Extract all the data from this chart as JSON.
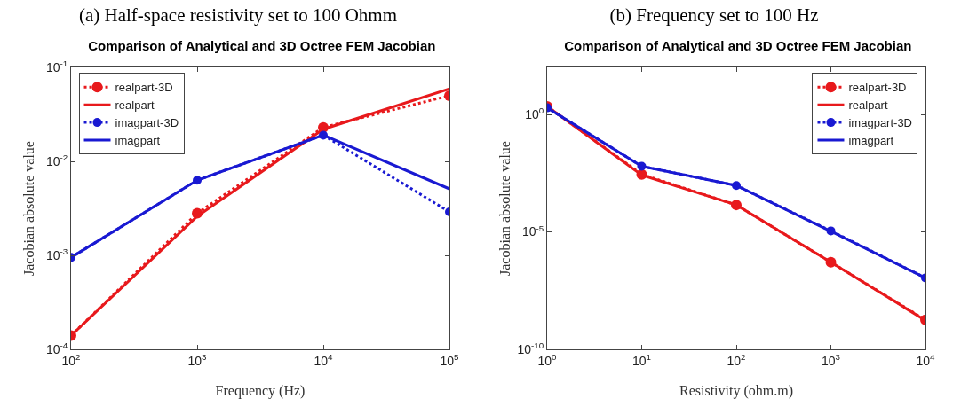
{
  "chart_data": [
    {
      "type": "line",
      "title": "(a)  Half-space resistivity set to 100 Ohmm",
      "subtitle": "Comparison of Analytical and 3D Octree FEM Jacobian",
      "xlabel": "Frequency (Hz)",
      "ylabel": "Jacobian absolute value",
      "log": "xy",
      "grid": false,
      "legend": "top left",
      "x": [
        100,
        1000,
        10000,
        100000
      ],
      "xlim": [
        100,
        100000
      ],
      "xticks": [
        {
          "value": 100,
          "label": "10$^{2}$"
        },
        {
          "value": 1000,
          "label": "10$^{3}$"
        },
        {
          "value": 10000,
          "label": "10$^{4}$"
        },
        {
          "value": 100000,
          "label": "10$^{5}$"
        }
      ],
      "ylim": [
        0.0001,
        0.1
      ],
      "yticks": [
        {
          "value": 0.0001,
          "label": "10$^{-4}$"
        },
        {
          "value": 0.001,
          "label": "10$^{-3}$"
        },
        {
          "value": 0.01,
          "label": "10$^{-2}$"
        },
        {
          "value": 0.1,
          "label": "10$^{-1}$"
        }
      ],
      "series": [
        {
          "name": "realpart-3D",
          "color": "#e8191c",
          "line_style": "dotted",
          "marker": "circle",
          "values": [
            0.00014,
            0.0028,
            0.023,
            0.05
          ]
        },
        {
          "name": "realpart",
          "color": "#e8191c",
          "line_style": "solid",
          "marker": "none",
          "values": [
            0.00014,
            0.0026,
            0.022,
            0.059
          ]
        },
        {
          "name": "imagpart-3D",
          "color": "#1919d2",
          "line_style": "dotted",
          "marker": "circle",
          "values": [
            0.00095,
            0.0063,
            0.019,
            0.0029
          ]
        },
        {
          "name": "imagpart",
          "color": "#1919d2",
          "line_style": "solid",
          "marker": "none",
          "values": [
            0.00095,
            0.0063,
            0.019,
            0.0051
          ]
        }
      ]
    },
    {
      "type": "line",
      "title": "(b) Frequency set to 100 Hz",
      "subtitle": "Comparison of Analytical and 3D Octree FEM Jacobian",
      "xlabel": "Resistivity (ohm.m)",
      "ylabel": "Jacobian absolute value",
      "log": "xy",
      "grid": false,
      "legend": "top right",
      "x": [
        1,
        10,
        100,
        1000,
        10000
      ],
      "xlim": [
        1,
        10000
      ],
      "xticks": [
        {
          "value": 1,
          "label": "10$^{0}$"
        },
        {
          "value": 10,
          "label": "10$^{1}$"
        },
        {
          "value": 100,
          "label": "10$^{2}$"
        },
        {
          "value": 1000,
          "label": "10$^{3}$"
        },
        {
          "value": 10000,
          "label": "10$^{4}$"
        }
      ],
      "ylim": [
        1e-10,
        100
      ],
      "yticks": [
        {
          "value": 1e-10,
          "label": "10$^{-10}$"
        },
        {
          "value": 1e-05,
          "label": "10$^{-5}$"
        },
        {
          "value": 1,
          "label": "10$^{0}$"
        }
      ],
      "series": [
        {
          "name": "realpart-3D",
          "color": "#e8191c",
          "line_style": "dotted",
          "marker": "circle",
          "values": [
            2.2,
            0.0028,
            0.00014,
            5.1e-07,
            1.8e-09
          ]
        },
        {
          "name": "realpart",
          "color": "#e8191c",
          "line_style": "solid",
          "marker": "none",
          "values": [
            2.2,
            0.0026,
            0.00014,
            5.1e-07,
            1.7e-09
          ]
        },
        {
          "name": "imagpart-3D",
          "color": "#1919d2",
          "line_style": "dotted",
          "marker": "circle",
          "values": [
            1.9,
            0.0062,
            0.00094,
            1.1e-05,
            1.1e-07
          ]
        },
        {
          "name": "imagpart",
          "color": "#1919d2",
          "line_style": "solid",
          "marker": "none",
          "values": [
            1.9,
            0.0062,
            0.00094,
            1.05e-05,
            1.1e-07
          ]
        }
      ]
    }
  ]
}
